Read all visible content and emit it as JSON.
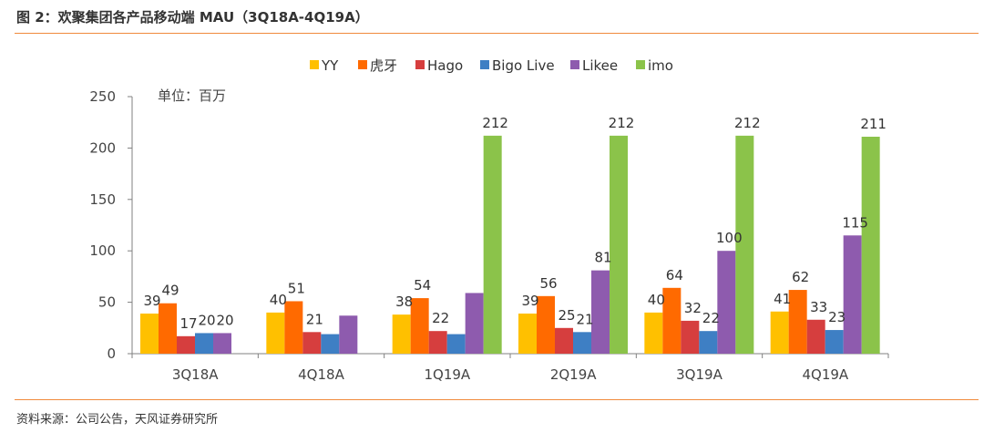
{
  "figure": {
    "title": "图 2：欢聚集团各产品移动端 MAU（3Q18A-4Q19A）",
    "source": "资料来源：公司公告，天风证券研究所"
  },
  "chart_data": {
    "type": "bar",
    "annotation": "单位：百万",
    "categories": [
      "3Q18A",
      "4Q18A",
      "1Q19A",
      "2Q19A",
      "3Q19A",
      "4Q19A"
    ],
    "ylim": [
      0,
      250
    ],
    "yticks": [
      0,
      50,
      100,
      150,
      200,
      250
    ],
    "grid": false,
    "legend_position": "top",
    "series": [
      {
        "name": "YY",
        "color": "#FFC000",
        "values": [
          39,
          40,
          38,
          39,
          40,
          41
        ],
        "labels": [
          "39",
          "40",
          "38",
          "39",
          "40",
          "41"
        ]
      },
      {
        "name": "虎牙",
        "color": "#FF6A00",
        "values": [
          49,
          51,
          54,
          56,
          64,
          62
        ],
        "labels": [
          "49",
          "51",
          "54",
          "56",
          "64",
          "62"
        ]
      },
      {
        "name": "Hago",
        "color": "#D63E3E",
        "values": [
          17,
          21,
          22,
          25,
          32,
          33
        ],
        "labels": [
          "17",
          "21",
          "22",
          "25",
          "32",
          "33"
        ]
      },
      {
        "name": "Bigo Live",
        "color": "#3E7FC4",
        "values": [
          20,
          19,
          19,
          21,
          22,
          23
        ],
        "labels": [
          "20",
          "",
          "",
          "21",
          "22",
          "23"
        ]
      },
      {
        "name": "Likee",
        "color": "#8E5BAE",
        "values": [
          20,
          37,
          59,
          81,
          100,
          115
        ],
        "labels": [
          "20",
          "",
          "",
          "81",
          "100",
          "115"
        ]
      },
      {
        "name": "imo",
        "color": "#8BC34A",
        "values": [
          null,
          null,
          212,
          212,
          212,
          211
        ],
        "labels": [
          "",
          "",
          "212",
          "212",
          "212",
          "211"
        ]
      }
    ]
  }
}
